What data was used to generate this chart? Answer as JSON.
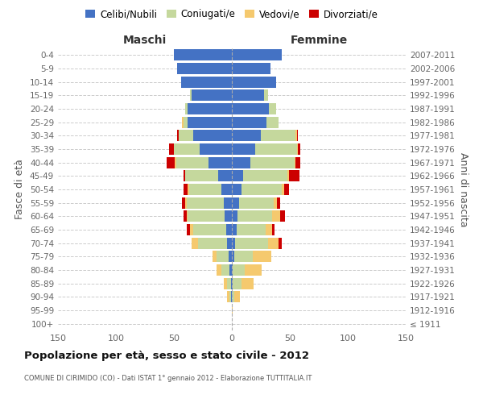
{
  "age_groups": [
    "100+",
    "95-99",
    "90-94",
    "85-89",
    "80-84",
    "75-79",
    "70-74",
    "65-69",
    "60-64",
    "55-59",
    "50-54",
    "45-49",
    "40-44",
    "35-39",
    "30-34",
    "25-29",
    "20-24",
    "15-19",
    "10-14",
    "5-9",
    "0-4"
  ],
  "birth_years": [
    "≤ 1911",
    "1912-1916",
    "1917-1921",
    "1922-1926",
    "1927-1931",
    "1932-1936",
    "1937-1941",
    "1942-1946",
    "1947-1951",
    "1952-1956",
    "1957-1961",
    "1962-1966",
    "1967-1971",
    "1972-1976",
    "1977-1981",
    "1982-1986",
    "1987-1991",
    "1992-1996",
    "1997-2001",
    "2002-2006",
    "2007-2011"
  ],
  "males_celibi": [
    0,
    0,
    1,
    1,
    2,
    3,
    4,
    5,
    6,
    7,
    9,
    12,
    20,
    28,
    33,
    38,
    38,
    35,
    44,
    47,
    50
  ],
  "males_coniugati": [
    0,
    0,
    1,
    3,
    7,
    10,
    25,
    28,
    32,
    32,
    28,
    28,
    28,
    22,
    13,
    4,
    2,
    1,
    0,
    0,
    0
  ],
  "males_vedovi": [
    0,
    0,
    2,
    3,
    4,
    4,
    6,
    3,
    1,
    1,
    1,
    0,
    1,
    0,
    0,
    1,
    0,
    0,
    0,
    0,
    0
  ],
  "males_divorziati": [
    0,
    0,
    0,
    0,
    0,
    0,
    0,
    3,
    3,
    3,
    4,
    2,
    7,
    4,
    1,
    0,
    0,
    0,
    0,
    0,
    0
  ],
  "females_nubili": [
    0,
    0,
    0,
    1,
    1,
    2,
    3,
    4,
    5,
    6,
    8,
    10,
    16,
    20,
    25,
    30,
    32,
    28,
    38,
    33,
    43
  ],
  "females_coniugate": [
    0,
    0,
    2,
    7,
    10,
    16,
    28,
    25,
    30,
    30,
    35,
    38,
    38,
    36,
    30,
    10,
    6,
    3,
    0,
    0,
    0
  ],
  "females_vedove": [
    0,
    1,
    5,
    11,
    15,
    16,
    9,
    6,
    7,
    3,
    2,
    1,
    1,
    1,
    1,
    0,
    0,
    0,
    0,
    0,
    0
  ],
  "females_divorziate": [
    0,
    0,
    0,
    0,
    0,
    0,
    3,
    2,
    4,
    3,
    4,
    9,
    4,
    2,
    1,
    0,
    0,
    0,
    0,
    0,
    0
  ],
  "color_celibi": "#4472c4",
  "color_coniugati": "#c5d89d",
  "color_vedovi": "#f5c96e",
  "color_divorziati": "#cc0000",
  "xlim": 150,
  "title": "Popolazione per età, sesso e stato civile - 2012",
  "subtitle": "COMUNE DI CIRIMIDO (CO) - Dati ISTAT 1° gennaio 2012 - Elaborazione TUTTITALIA.IT",
  "ylabel_left": "Fasce di età",
  "ylabel_right": "Anni di nascita",
  "label_maschi": "Maschi",
  "label_femmine": "Femmine",
  "legend_labels": [
    "Celibi/Nubili",
    "Coniugati/e",
    "Vedovi/e",
    "Divorziati/e"
  ],
  "background_color": "#ffffff",
  "grid_color": "#cccccc"
}
